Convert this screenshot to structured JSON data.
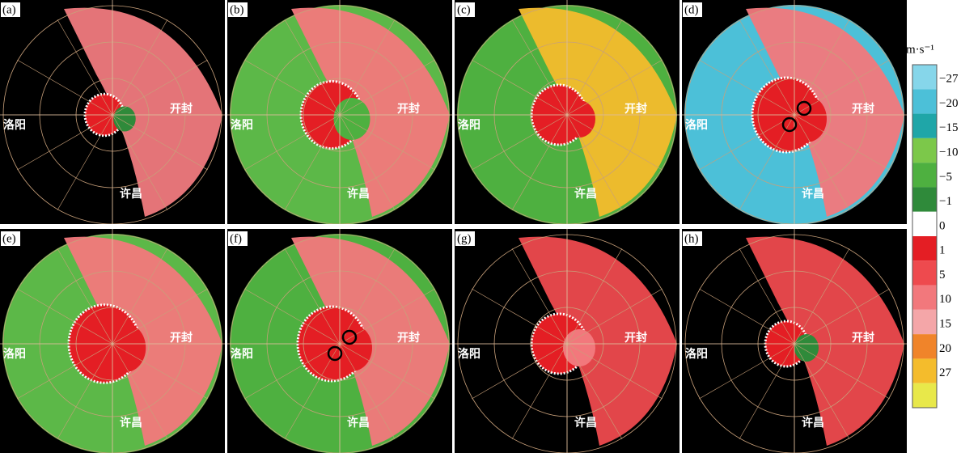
{
  "panels": [
    {
      "label": "(a)",
      "cities": [
        "开封",
        "洛阳",
        "许昌"
      ]
    },
    {
      "label": "(b)",
      "cities": [
        "开封",
        "洛阳",
        "许昌"
      ]
    },
    {
      "label": "(c)",
      "cities": [
        "开封",
        "洛阳",
        "许昌"
      ]
    },
    {
      "label": "(d)",
      "cities": [
        "开封",
        "洛阳",
        "许昌"
      ]
    },
    {
      "label": "(e)",
      "cities": [
        "开封",
        "洛阳",
        "许昌"
      ]
    },
    {
      "label": "(f)",
      "cities": [
        "开封",
        "洛阳",
        "许昌"
      ]
    },
    {
      "label": "(g)",
      "cities": [
        "开封",
        "洛阳",
        "许昌"
      ]
    },
    {
      "label": "(h)",
      "cities": [
        "开封",
        "洛阳",
        "许昌"
      ]
    }
  ],
  "colorbar": {
    "unit": "m·s⁻¹",
    "labels": [
      "−27",
      "−20",
      "−15",
      "−10",
      "−5",
      "−1",
      "0",
      "1",
      "5",
      "10",
      "15",
      "20",
      "27"
    ],
    "colors": [
      "#86d6ea",
      "#4cc0d8",
      "#1fa6a8",
      "#7cc84a",
      "#4eb040",
      "#2f8a3a",
      "#ffffff",
      "#e41e24",
      "#ee4a4e",
      "#f2787c",
      "#f4a6a8",
      "#f0842a",
      "#f4bc2c",
      "#e8e84a"
    ]
  }
}
